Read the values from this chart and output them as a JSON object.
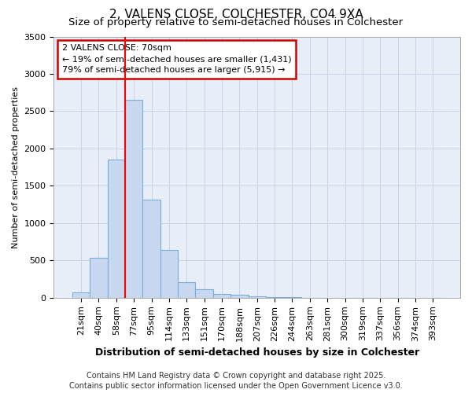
{
  "title_line1": "2, VALENS CLOSE, COLCHESTER, CO4 9XA",
  "title_line2": "Size of property relative to semi-detached houses in Colchester",
  "xlabel": "Distribution of semi-detached houses by size in Colchester",
  "ylabel": "Number of semi-detached properties",
  "footnote": "Contains HM Land Registry data © Crown copyright and database right 2025.\nContains public sector information licensed under the Open Government Licence v3.0.",
  "annotation_line1": "2 VALENS CLOSE: 70sqm",
  "annotation_line2": "← 19% of semi-detached houses are smaller (1,431)",
  "annotation_line3": "79% of semi-detached houses are larger (5,915) →",
  "bin_labels": [
    "21sqm",
    "40sqm",
    "58sqm",
    "77sqm",
    "95sqm",
    "114sqm",
    "133sqm",
    "151sqm",
    "170sqm",
    "188sqm",
    "207sqm",
    "226sqm",
    "244sqm",
    "263sqm",
    "281sqm",
    "300sqm",
    "319sqm",
    "337sqm",
    "356sqm",
    "374sqm",
    "393sqm"
  ],
  "bar_values": [
    75,
    530,
    1850,
    2650,
    1310,
    640,
    210,
    110,
    55,
    35,
    15,
    8,
    5,
    3,
    2,
    1,
    1,
    0,
    0,
    0,
    0
  ],
  "bar_color": "#c8d8f0",
  "bar_edge_color": "#7bafd4",
  "ylim": [
    0,
    3500
  ],
  "yticks": [
    0,
    500,
    1000,
    1500,
    2000,
    2500,
    3000,
    3500
  ],
  "grid_color": "#c8d4e8",
  "bg_color": "#e8eef8",
  "title_fontsize": 11,
  "subtitle_fontsize": 9.5,
  "xlabel_fontsize": 9,
  "ylabel_fontsize": 8,
  "tick_fontsize": 8,
  "annotation_box_color": "#cc0000",
  "annotation_fontsize": 8,
  "red_line_x": 2.5,
  "footnote_fontsize": 7
}
